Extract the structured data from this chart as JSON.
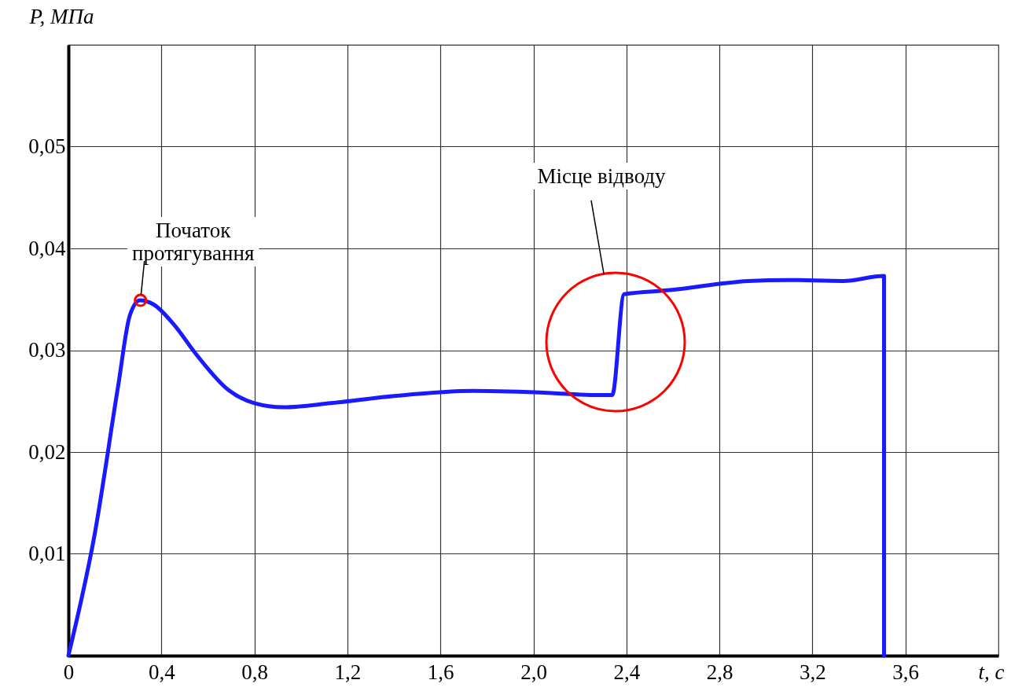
{
  "chart_data": {
    "type": "line",
    "xlabel": "t, с",
    "ylabel": "P, МПа",
    "x": [
      0,
      0.112,
      0.214,
      0.264,
      0.308,
      0.366,
      0.451,
      0.553,
      0.688,
      0.8,
      0.925,
      1.129,
      1.4,
      1.739,
      2.078,
      2.247,
      2.339,
      2.39,
      2.586,
      2.925,
      3.095,
      3.332,
      3.508,
      3.508
    ],
    "series": [
      {
        "color": "#1a1aff",
        "values": [
          0,
          0.0118,
          0.0265,
          0.0334,
          0.0349,
          0.0345,
          0.0326,
          0.0295,
          0.0261,
          0.0248,
          0.0244,
          0.0248,
          0.0255,
          0.026,
          0.0258,
          0.0256,
          0.0256,
          0.0355,
          0.0359,
          0.0368,
          0.0369,
          0.0368,
          0.0373,
          0
        ]
      }
    ],
    "xlim": [
      0,
      4.0
    ],
    "ylim": [
      0,
      0.06
    ],
    "xticks": [
      0,
      {
        "value": 0.4,
        "label": "0,4"
      },
      {
        "value": 0.8,
        "label": "0,8"
      },
      {
        "value": 1.2,
        "label": "1,2"
      },
      {
        "value": 1.6,
        "label": "1,6"
      },
      {
        "value": 2.0,
        "label": "2,0"
      },
      {
        "value": 2.4,
        "label": "2,4"
      },
      {
        "value": 2.8,
        "label": "2,8"
      },
      {
        "value": 3.2,
        "label": "3,2"
      },
      {
        "value": 3.6,
        "label": "3,6"
      }
    ],
    "yticks": [
      {
        "value": 0.01,
        "label": "0,01"
      },
      {
        "value": 0.02,
        "label": "0,02"
      },
      {
        "value": 0.03,
        "label": "0,03"
      },
      {
        "value": 0.04,
        "label": "0,04"
      },
      {
        "value": 0.05,
        "label": "0,05"
      }
    ],
    "grid": true,
    "line_style": "solid",
    "marker": "none",
    "annotations": [
      {
        "text": "Початок\nпротягування",
        "x": 0.31,
        "y": 0.0349
      },
      "Місце відводу"
    ]
  }
}
